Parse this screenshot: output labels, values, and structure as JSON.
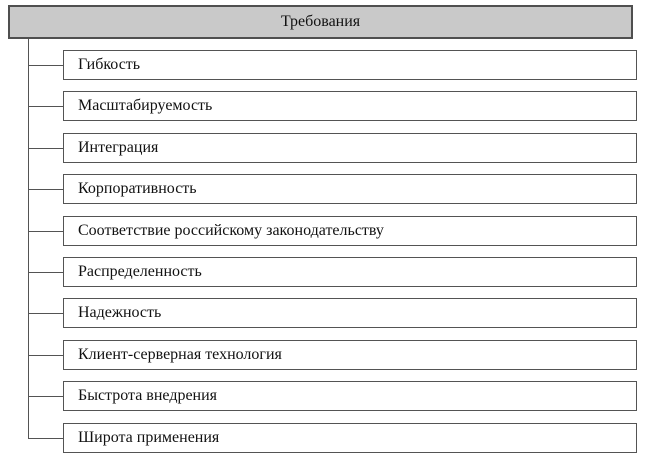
{
  "diagram": {
    "root": {
      "label": "Требования"
    },
    "items": [
      {
        "label": "Гибкость"
      },
      {
        "label": "Масштабируемость"
      },
      {
        "label": "Интеграция"
      },
      {
        "label": "Корпоративность"
      },
      {
        "label": "Соответствие российскому законодательству"
      },
      {
        "label": "Распределенность"
      },
      {
        "label": "Надежность"
      },
      {
        "label": "Клиент-серверная технология"
      },
      {
        "label": "Быстрота внедрения"
      },
      {
        "label": "Широта применения"
      }
    ],
    "colors": {
      "root_fill": "#c9c9c9",
      "border": "#545454",
      "background": "#ffffff",
      "text": "#111111"
    }
  }
}
